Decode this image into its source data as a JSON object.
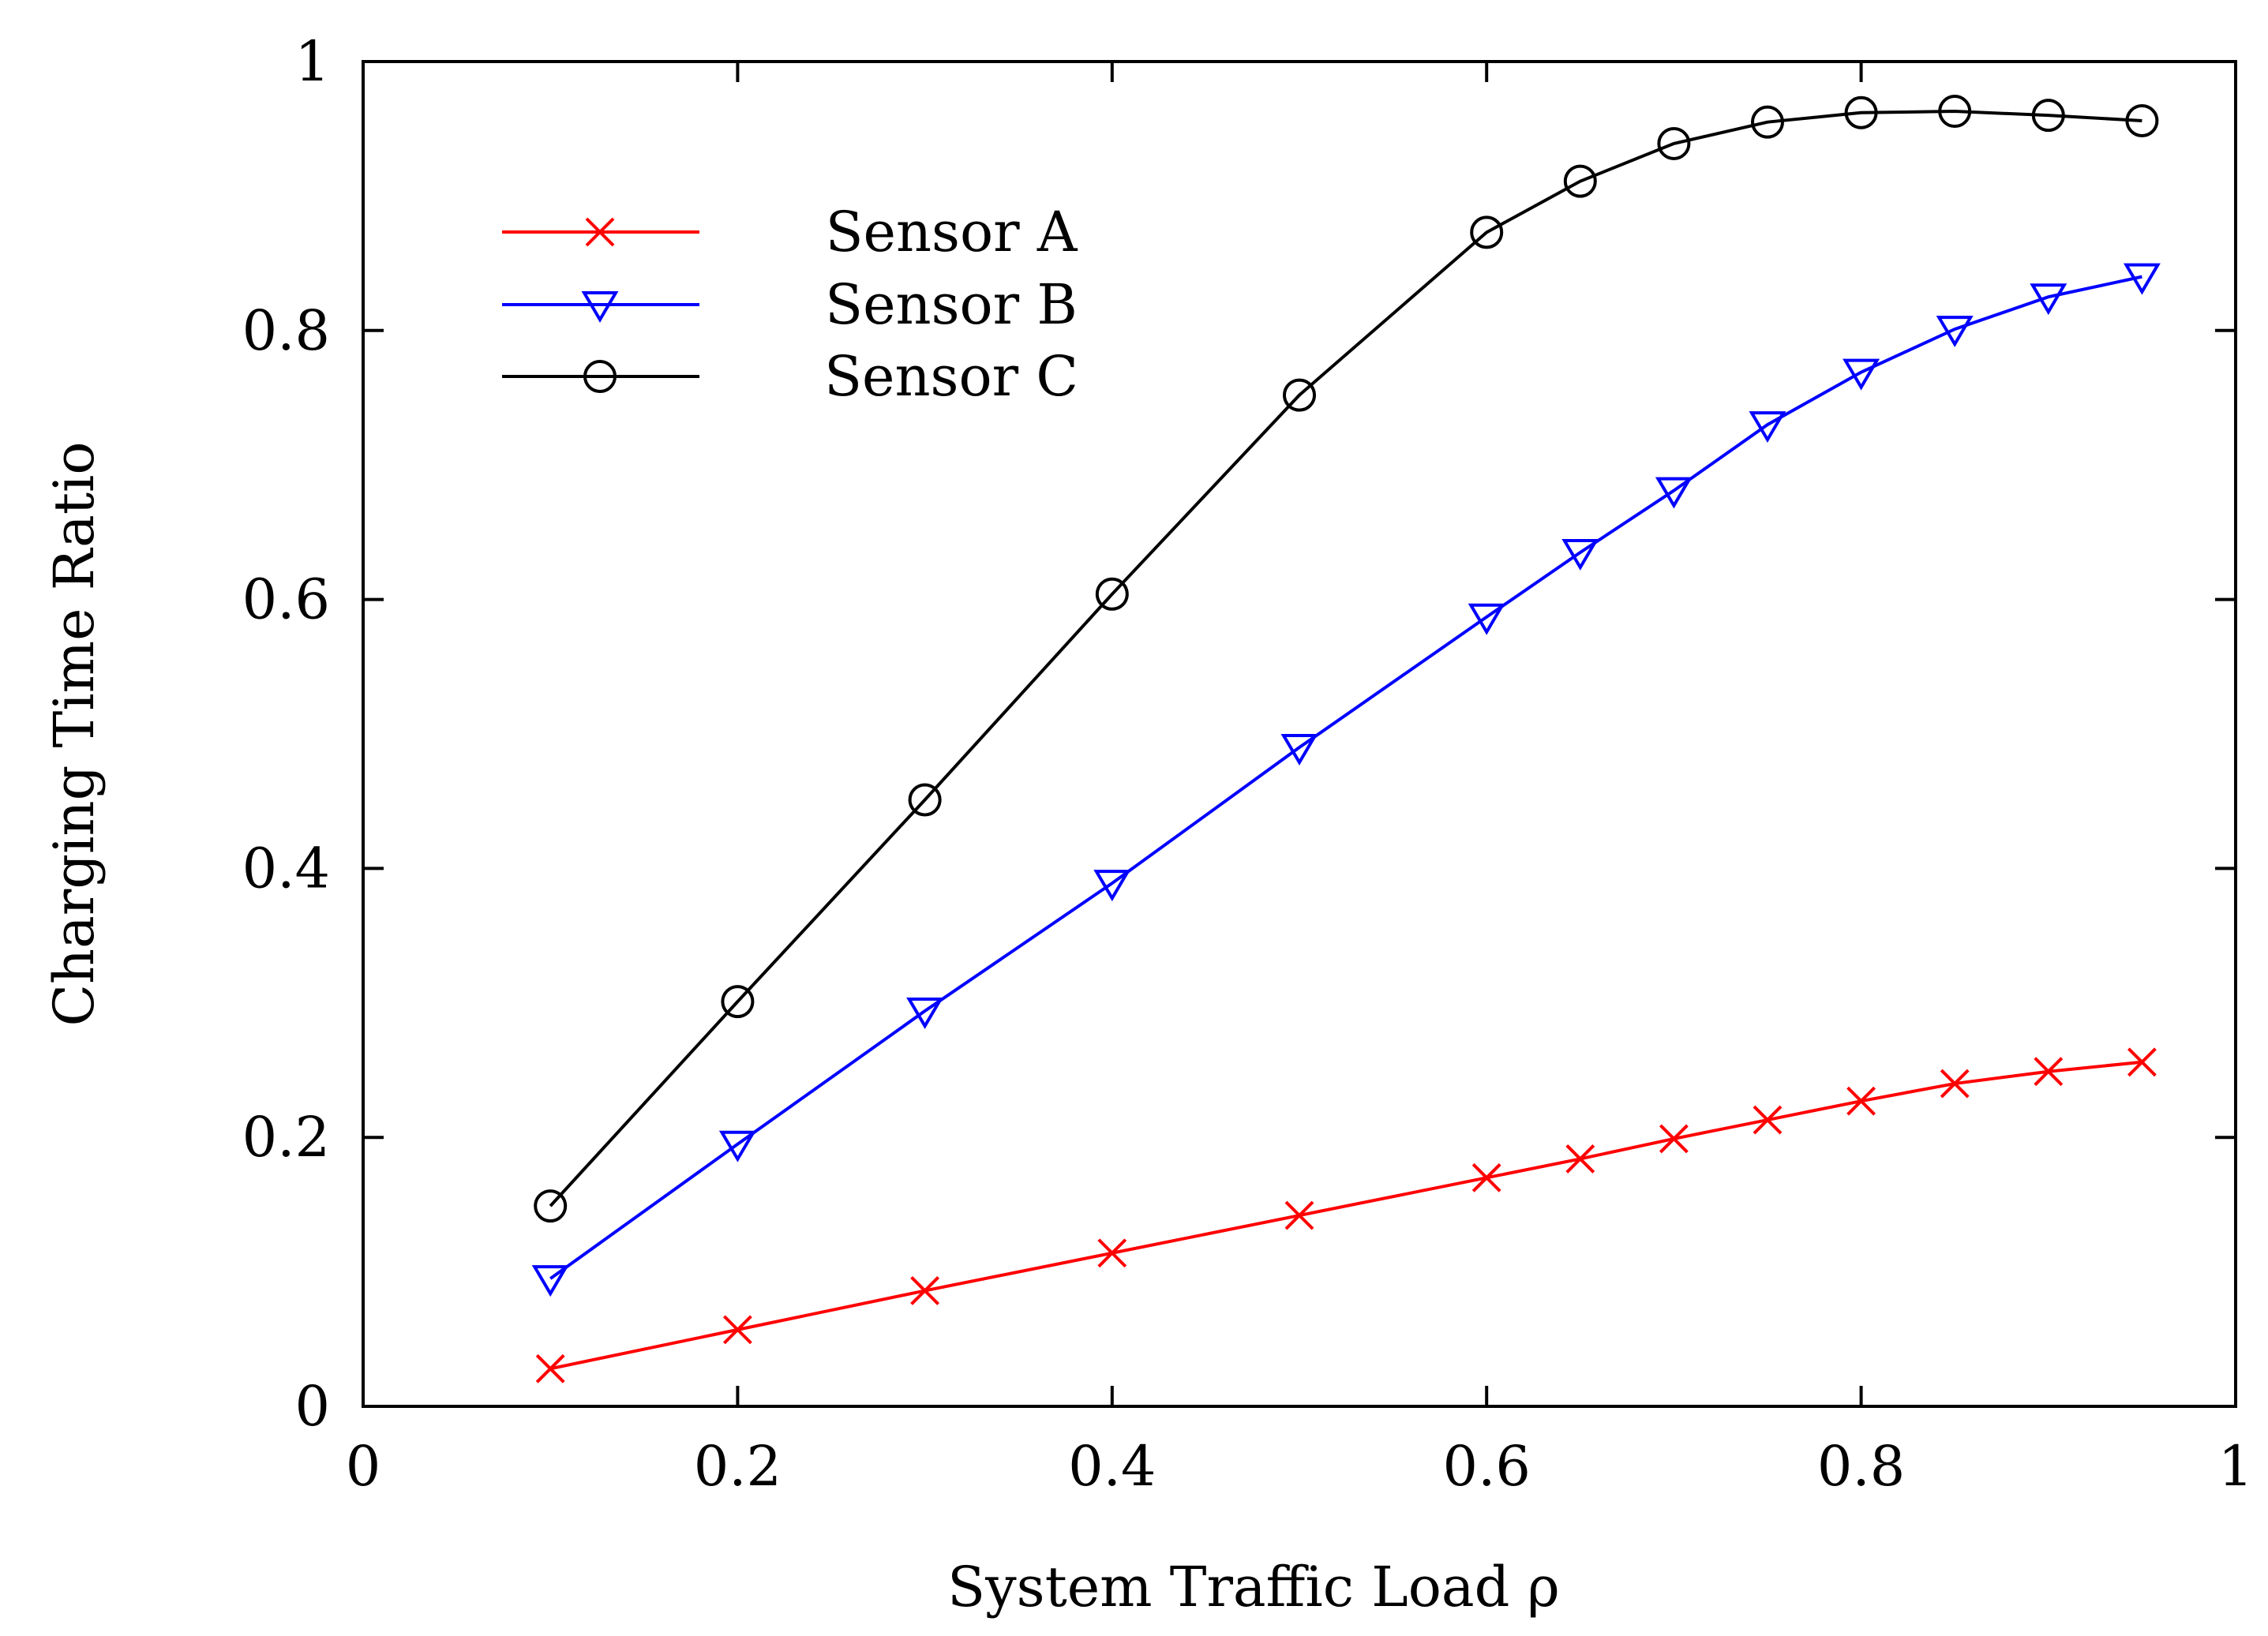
{
  "chart_data": {
    "type": "line",
    "xlabel": "System Traffic Load ρ",
    "ylabel": "Charging Time Ratio",
    "xlim": [
      0,
      1
    ],
    "ylim": [
      0,
      1
    ],
    "x_ticks": [
      0,
      0.2,
      0.4,
      0.6,
      0.8,
      1
    ],
    "x_tick_labels": [
      "0",
      "0.2",
      "0.4",
      "0.6",
      "0.8",
      "1"
    ],
    "y_ticks": [
      0,
      0.2,
      0.4,
      0.6,
      0.8,
      1
    ],
    "y_tick_labels": [
      "0",
      "0.2",
      "0.4",
      "0.6",
      "0.8",
      "1"
    ],
    "grid": false,
    "legend_position": "top-left",
    "x": [
      0.1,
      0.2,
      0.3,
      0.4,
      0.5,
      0.6,
      0.65,
      0.7,
      0.75,
      0.8,
      0.85,
      0.9,
      0.95
    ],
    "series": [
      {
        "name": "Sensor A",
        "color": "#ff0000",
        "marker": "x",
        "values": [
          0.028,
          0.057,
          0.086,
          0.114,
          0.142,
          0.17,
          0.184,
          0.199,
          0.213,
          0.227,
          0.24,
          0.249,
          0.256
        ]
      },
      {
        "name": "Sensor B",
        "color": "#0000ff",
        "marker": "triangle-down",
        "values": [
          0.095,
          0.195,
          0.294,
          0.389,
          0.49,
          0.587,
          0.635,
          0.681,
          0.73,
          0.769,
          0.801,
          0.825,
          0.84
        ]
      },
      {
        "name": "Sensor C",
        "color": "#000000",
        "marker": "circle",
        "values": [
          0.149,
          0.301,
          0.451,
          0.604,
          0.752,
          0.873,
          0.911,
          0.939,
          0.955,
          0.962,
          0.963,
          0.96,
          0.956
        ]
      }
    ]
  }
}
